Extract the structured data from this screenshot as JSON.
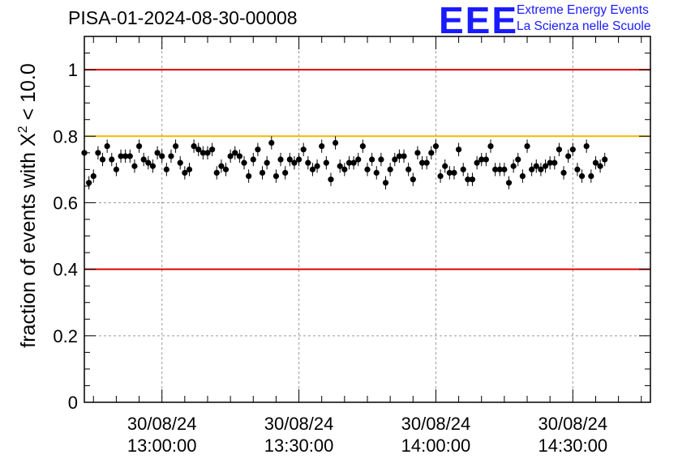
{
  "header": {
    "title": "PISA-01-2024-08-30-00008",
    "logo_text": "EEE",
    "logo_line1": "Extreme Energy Events",
    "logo_line2": "La Scienza nelle Scuole",
    "logo_color": "#1a1aff"
  },
  "chart_data": {
    "type": "scatter",
    "title": "PISA-01-2024-08-30-00008",
    "xlabel": "",
    "ylabel_prefix": "fraction of events with X",
    "ylabel_sup": "2",
    "ylabel_suffix": " < 10.0",
    "ylim": [
      0,
      1.1
    ],
    "xlim": [
      "2024-08-30 12:43:00",
      "2024-08-30 14:47:00"
    ],
    "yticks": [
      0,
      0.2,
      0.4,
      0.6,
      0.8,
      1
    ],
    "ytick_labels": [
      "0",
      "0.2",
      "0.4",
      "0.6",
      "0.8",
      "1"
    ],
    "xticks": [
      {
        "date": "30/08/24",
        "time": "13:00:00"
      },
      {
        "date": "30/08/24",
        "time": "13:30:00"
      },
      {
        "date": "30/08/24",
        "time": "14:00:00"
      },
      {
        "date": "30/08/24",
        "time": "14:30:00"
      }
    ],
    "grid": true,
    "reference_lines": [
      {
        "y": 1.0,
        "color": "#e00000"
      },
      {
        "y": 0.8,
        "color": "#f5b800"
      },
      {
        "y": 0.4,
        "color": "#e00000"
      }
    ],
    "error": 0.02,
    "series": [
      {
        "x_start": "2024-08-30 12:43:00",
        "x_step_minutes": 1,
        "values": [
          0.75,
          0.66,
          0.68,
          0.75,
          0.73,
          0.77,
          0.73,
          0.7,
          0.74,
          0.74,
          0.74,
          0.71,
          0.77,
          0.73,
          0.72,
          0.71,
          0.75,
          0.74,
          0.7,
          0.74,
          0.77,
          0.72,
          0.69,
          0.7,
          0.77,
          0.76,
          0.75,
          0.75,
          0.76,
          0.69,
          0.71,
          0.7,
          0.74,
          0.75,
          0.74,
          0.72,
          0.68,
          0.73,
          0.76,
          0.69,
          0.72,
          0.78,
          0.68,
          0.73,
          0.69,
          0.73,
          0.72,
          0.73,
          0.76,
          0.72,
          0.7,
          0.71,
          0.77,
          0.72,
          0.67,
          0.78,
          0.71,
          0.7,
          0.72,
          0.72,
          0.73,
          0.77,
          0.7,
          0.73,
          0.69,
          0.73,
          0.66,
          0.7,
          0.73,
          0.74,
          0.74,
          0.7,
          0.67,
          0.75,
          0.72,
          0.72,
          0.75,
          0.77,
          0.68,
          0.71,
          0.69,
          0.69,
          0.76,
          0.7,
          0.67,
          0.67,
          0.72,
          0.73,
          0.73,
          0.77,
          0.7,
          0.7,
          0.7,
          0.66,
          0.71,
          0.73,
          0.68,
          0.77,
          0.7,
          0.71,
          0.7,
          0.71,
          0.72,
          0.72,
          0.76,
          0.69,
          0.74,
          0.76,
          0.7,
          0.68,
          0.77,
          0.68,
          0.72,
          0.71,
          0.73
        ]
      }
    ]
  }
}
